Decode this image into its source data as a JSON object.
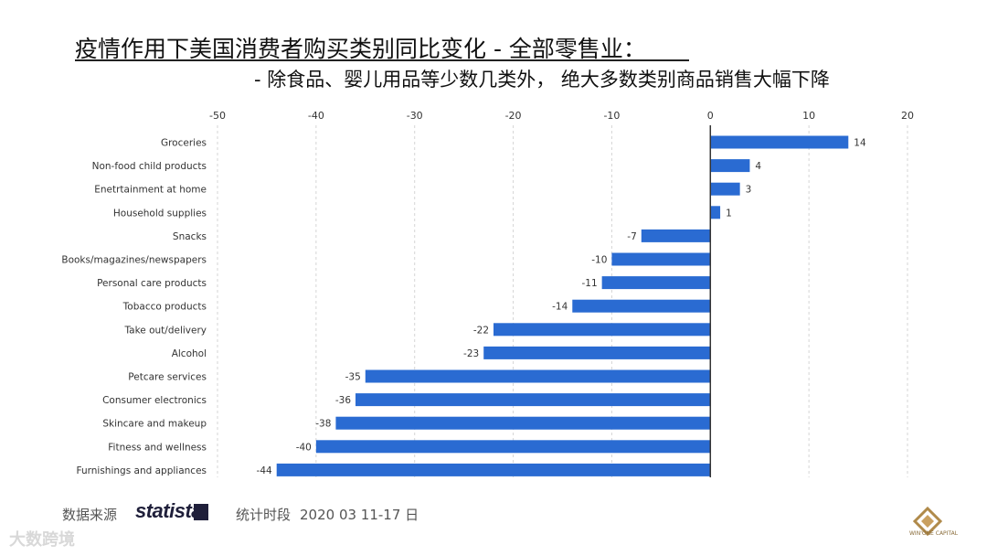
{
  "title": {
    "line1": "疫情作用下美国消费者购买类别同比变化 - 全部零售业：",
    "line2": "- 除食品、婴儿用品等少数几类外， 绝大多数类别商品销售大幅下降"
  },
  "footer": {
    "source_label": "数据来源",
    "brand": "statista",
    "period_label": "统计时段",
    "period_value": "2020 03 11-17 日",
    "watermark": "大数跨境",
    "logo_text": "WIN'ONE CAPITAL"
  },
  "colors": {
    "bar": "#2a6bd2",
    "grid": "#d6d6d6",
    "zero_line": "#333333",
    "text": "#333333"
  },
  "chart_data": {
    "type": "bar",
    "orientation": "horizontal",
    "categories": [
      "Groceries",
      "Non-food child products",
      "Enetrtainment at home",
      "Household supplies",
      "Snacks",
      "Books/magazines/newspapers",
      "Personal care products",
      "Tobacco products",
      "Take out/delivery",
      "Alcohol",
      "Petcare services",
      "Consumer electronics",
      "Skincare and makeup",
      "Fitness and wellness",
      "Furnishings and appliances"
    ],
    "values": [
      14,
      4,
      3,
      1,
      -7,
      -10,
      -11,
      -14,
      -22,
      -23,
      -35,
      -36,
      -38,
      -40,
      -44
    ],
    "xlim": [
      -50,
      20
    ],
    "xticks": [
      -50,
      -40,
      -30,
      -20,
      -10,
      0,
      10,
      20
    ],
    "grid": true,
    "legend": "none"
  }
}
